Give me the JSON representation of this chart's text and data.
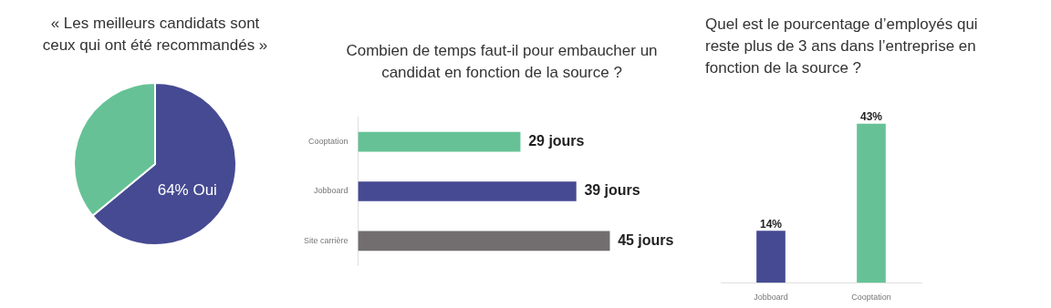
{
  "chart_data": [
    {
      "type": "pie",
      "title": "« Les meilleurs candidats sont ceux qui ont été recommandés »",
      "categories": [
        null,
        null
      ],
      "values": [
        64,
        36
      ],
      "colors": [
        "#454a92",
        "#66c296"
      ],
      "value_labels": [
        "64% Oui",
        null
      ]
    },
    {
      "type": "bar",
      "orientation": "horizontal",
      "title": "Combien de temps faut-il pour embaucher un candidat en fonction de la source ?",
      "categories": [
        "Cooptation",
        "Jobboard",
        "Site carrière"
      ],
      "values": [
        29,
        39,
        45
      ],
      "colors": [
        "#66c296",
        "#454a92",
        "#726e6f"
      ],
      "value_labels": [
        "29 jours",
        "39 jours",
        "45 jours"
      ]
    },
    {
      "type": "bar",
      "title": "Quel est le pourcentage d’employés qui reste plus de 3 ans dans l’entreprise en fonction de la source ?",
      "categories": [
        "Jobboard",
        "Cooptation"
      ],
      "values": [
        14,
        43
      ],
      "colors": [
        "#454a92",
        "#66c296"
      ],
      "value_labels": [
        "14%",
        "43%"
      ]
    }
  ]
}
